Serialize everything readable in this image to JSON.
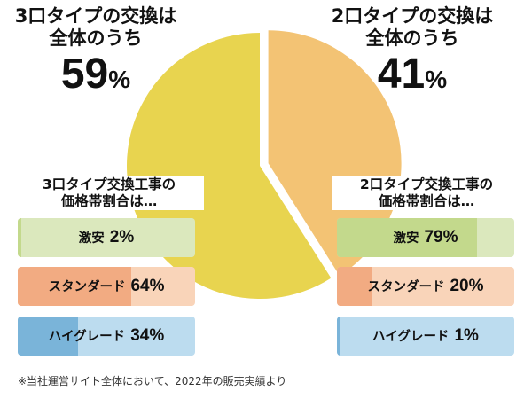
{
  "chart_data": [
    {
      "type": "pie",
      "categories": [
        "3口タイプの交換",
        "2口タイプの交換"
      ],
      "values": [
        59,
        41
      ],
      "colors": [
        "#e8d44f",
        "#f3c374"
      ],
      "annotations": [
        {
          "line1": "3口タイプの交換は",
          "line2": "全体のうち",
          "num": "59",
          "unit": "%"
        },
        {
          "line1": "2口タイプの交換は",
          "line2": "全体のうち",
          "num": "41",
          "unit": "%"
        }
      ]
    },
    {
      "type": "bar",
      "title_line1": "3口タイプ交換工事の",
      "title_line2": "価格帯割合は…",
      "categories": [
        "激安",
        "スタンダード",
        "ハイグレード"
      ],
      "values": [
        2,
        64,
        34
      ],
      "labels": [
        "2%",
        "64%",
        "34%"
      ],
      "xlim": [
        0,
        100
      ]
    },
    {
      "type": "bar",
      "title_line1": "2口タイプ交換工事の",
      "title_line2": "価格帯割合は…",
      "categories": [
        "激安",
        "スタンダード",
        "ハイグレード"
      ],
      "values": [
        79,
        20,
        1
      ],
      "labels": [
        "79%",
        "20%",
        "1%"
      ],
      "xlim": [
        0,
        100
      ]
    }
  ],
  "bar_colors": {
    "cheap": {
      "bg": "#dbe8bd",
      "fill": "#c3d98c"
    },
    "standard": {
      "bg": "#f9d4b9",
      "fill": "#f2ab82"
    },
    "high": {
      "bg": "#bcdcef",
      "fill": "#7ab4d9"
    }
  },
  "footnote": "※当社運営サイト全体において、2022年の販売実績より"
}
